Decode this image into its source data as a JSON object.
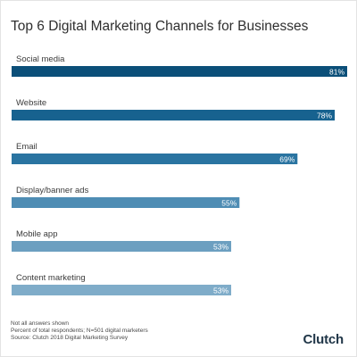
{
  "chart_data": {
    "type": "bar",
    "orientation": "horizontal",
    "title": "Top 6 Digital Marketing Channels for Businesses",
    "categories": [
      "Social media",
      "Website",
      "Email",
      "Display/banner ads",
      "Mobile app",
      "Content marketing"
    ],
    "values": [
      81,
      78,
      69,
      55,
      53,
      53
    ],
    "value_labels": [
      "81%",
      "78%",
      "69%",
      "55%",
      "53%",
      "53%"
    ],
    "unit": "%",
    "xlim": [
      0,
      81
    ],
    "grid": false,
    "legend": "none",
    "colors": [
      "#0b4f79",
      "#17628f",
      "#2a74a1",
      "#4f8db4",
      "#6c9fc0",
      "#7facc9"
    ]
  },
  "footnotes": [
    "Not all answers shown",
    "Percent of total respondents; N=501 digital marketers",
    "Source: Clutch 2018 Digital Marketing Survey"
  ],
  "brand": {
    "logo_text": "Clutch"
  }
}
